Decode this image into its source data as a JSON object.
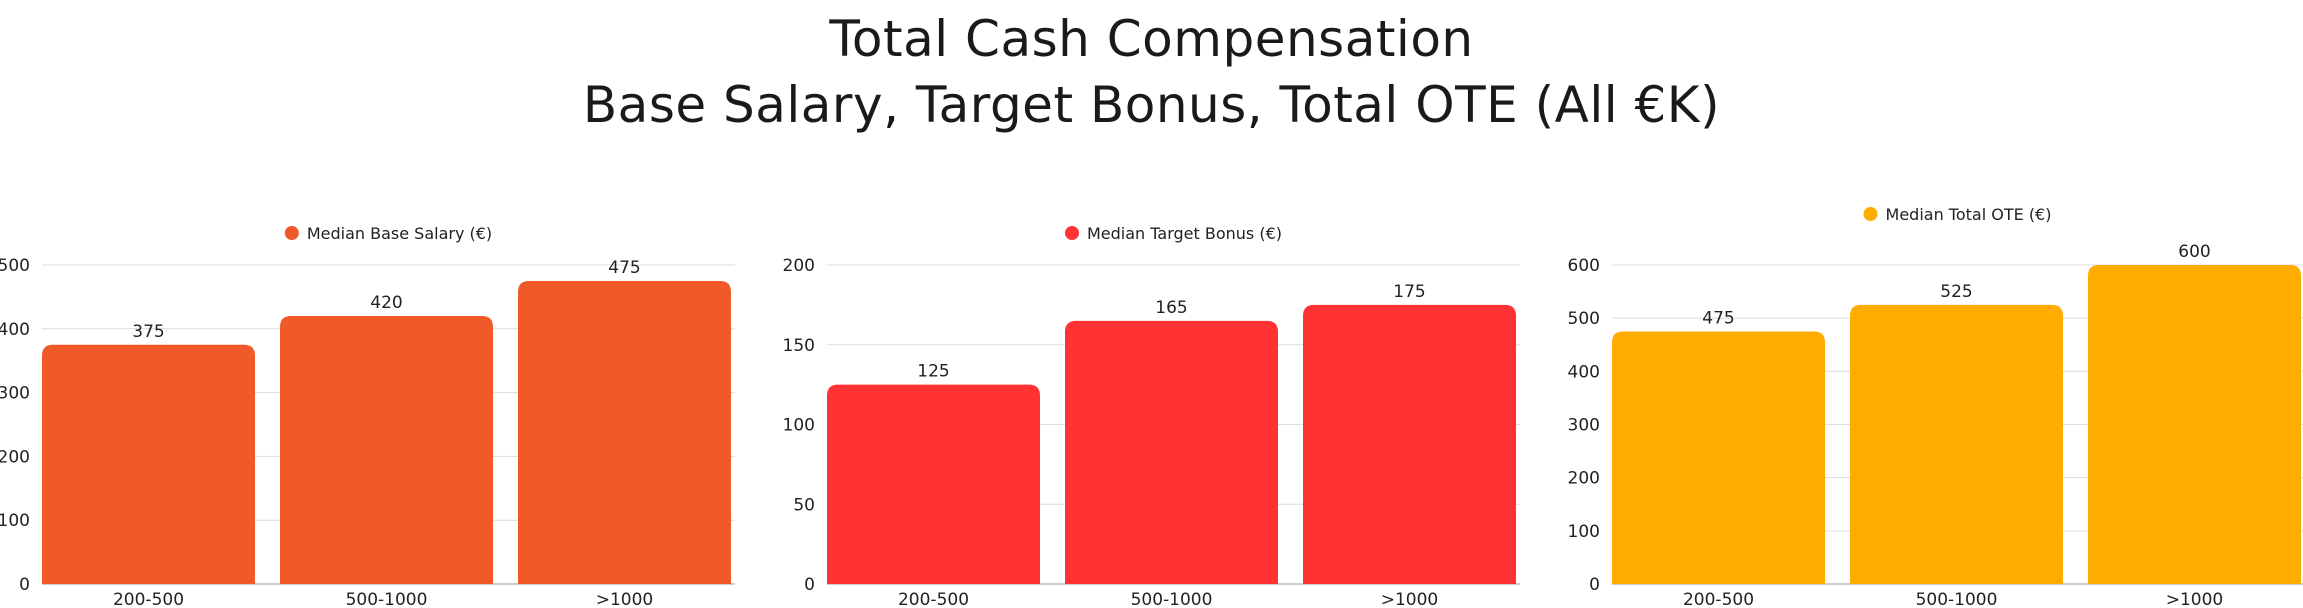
{
  "title": "Total Cash Compensation",
  "subtitle": "Base Salary, Target Bonus,  Total OTE (All €K)",
  "chart_data": [
    {
      "type": "bar",
      "categories": [
        "200-500",
        "500-1000",
        ">1000"
      ],
      "series": [
        {
          "name": "Median Base Salary (€)",
          "values": [
            375,
            420,
            475
          ]
        }
      ],
      "ylim": [
        0,
        500
      ],
      "yticks": [
        0,
        100,
        200,
        300,
        400,
        500
      ],
      "color": "#F05A28",
      "legend": "top-center",
      "grid": true
    },
    {
      "type": "bar",
      "categories": [
        "200-500",
        "500-1000",
        ">1000"
      ],
      "series": [
        {
          "name": "Median Target Bonus (€)",
          "values": [
            125,
            165,
            175
          ]
        }
      ],
      "ylim": [
        0,
        200
      ],
      "yticks": [
        0,
        50,
        100,
        150,
        200
      ],
      "color": "#FF3333",
      "legend": "top-center",
      "grid": true
    },
    {
      "type": "bar",
      "categories": [
        "200-500",
        "500-1000",
        ">1000"
      ],
      "series": [
        {
          "name": "Median Total OTE (€)",
          "values": [
            475,
            525,
            600
          ]
        }
      ],
      "ylim": [
        0,
        600
      ],
      "yticks": [
        0,
        100,
        200,
        300,
        400,
        500,
        600
      ],
      "color": "#FFAC00",
      "legend": "top-center",
      "grid": true
    }
  ]
}
